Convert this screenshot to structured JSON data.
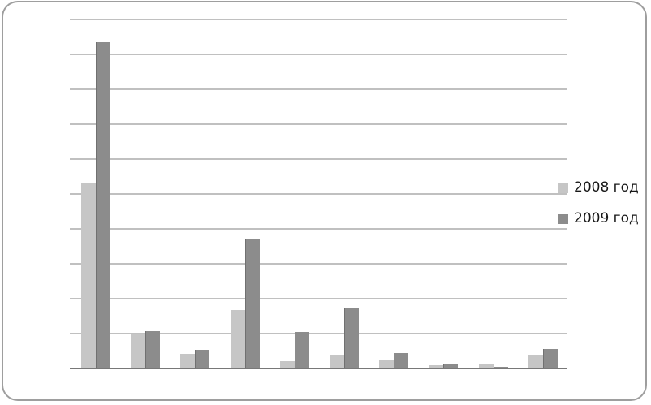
{
  "chart_data": {
    "type": "bar",
    "title": "",
    "xlabel": "",
    "ylabel": "",
    "axis_tick_labels": "none",
    "categories": [
      "",
      "",
      "",
      "",
      "",
      "",
      "",
      "",
      "",
      ""
    ],
    "ylim": [
      0,
      10
    ],
    "gridline_interval": 1,
    "grid": true,
    "legend_position": "right",
    "series": [
      {
        "name": "2008 год",
        "color": "#c6c6c6",
        "values": [
          5.33,
          0.98,
          0.41,
          1.68,
          0.21,
          0.4,
          0.25,
          0.1,
          0.12,
          0.4
        ]
      },
      {
        "name": "2009 год",
        "color": "#8c8c8c",
        "values": [
          9.34,
          1.08,
          0.54,
          3.7,
          1.05,
          1.73,
          0.44,
          0.13,
          0.05,
          0.55
        ]
      }
    ]
  },
  "frame": {
    "border_color": "#9e9e9e",
    "background": "#ffffff"
  },
  "axis": {
    "gridline_color": "#828282",
    "baseline_color": "#787878"
  }
}
